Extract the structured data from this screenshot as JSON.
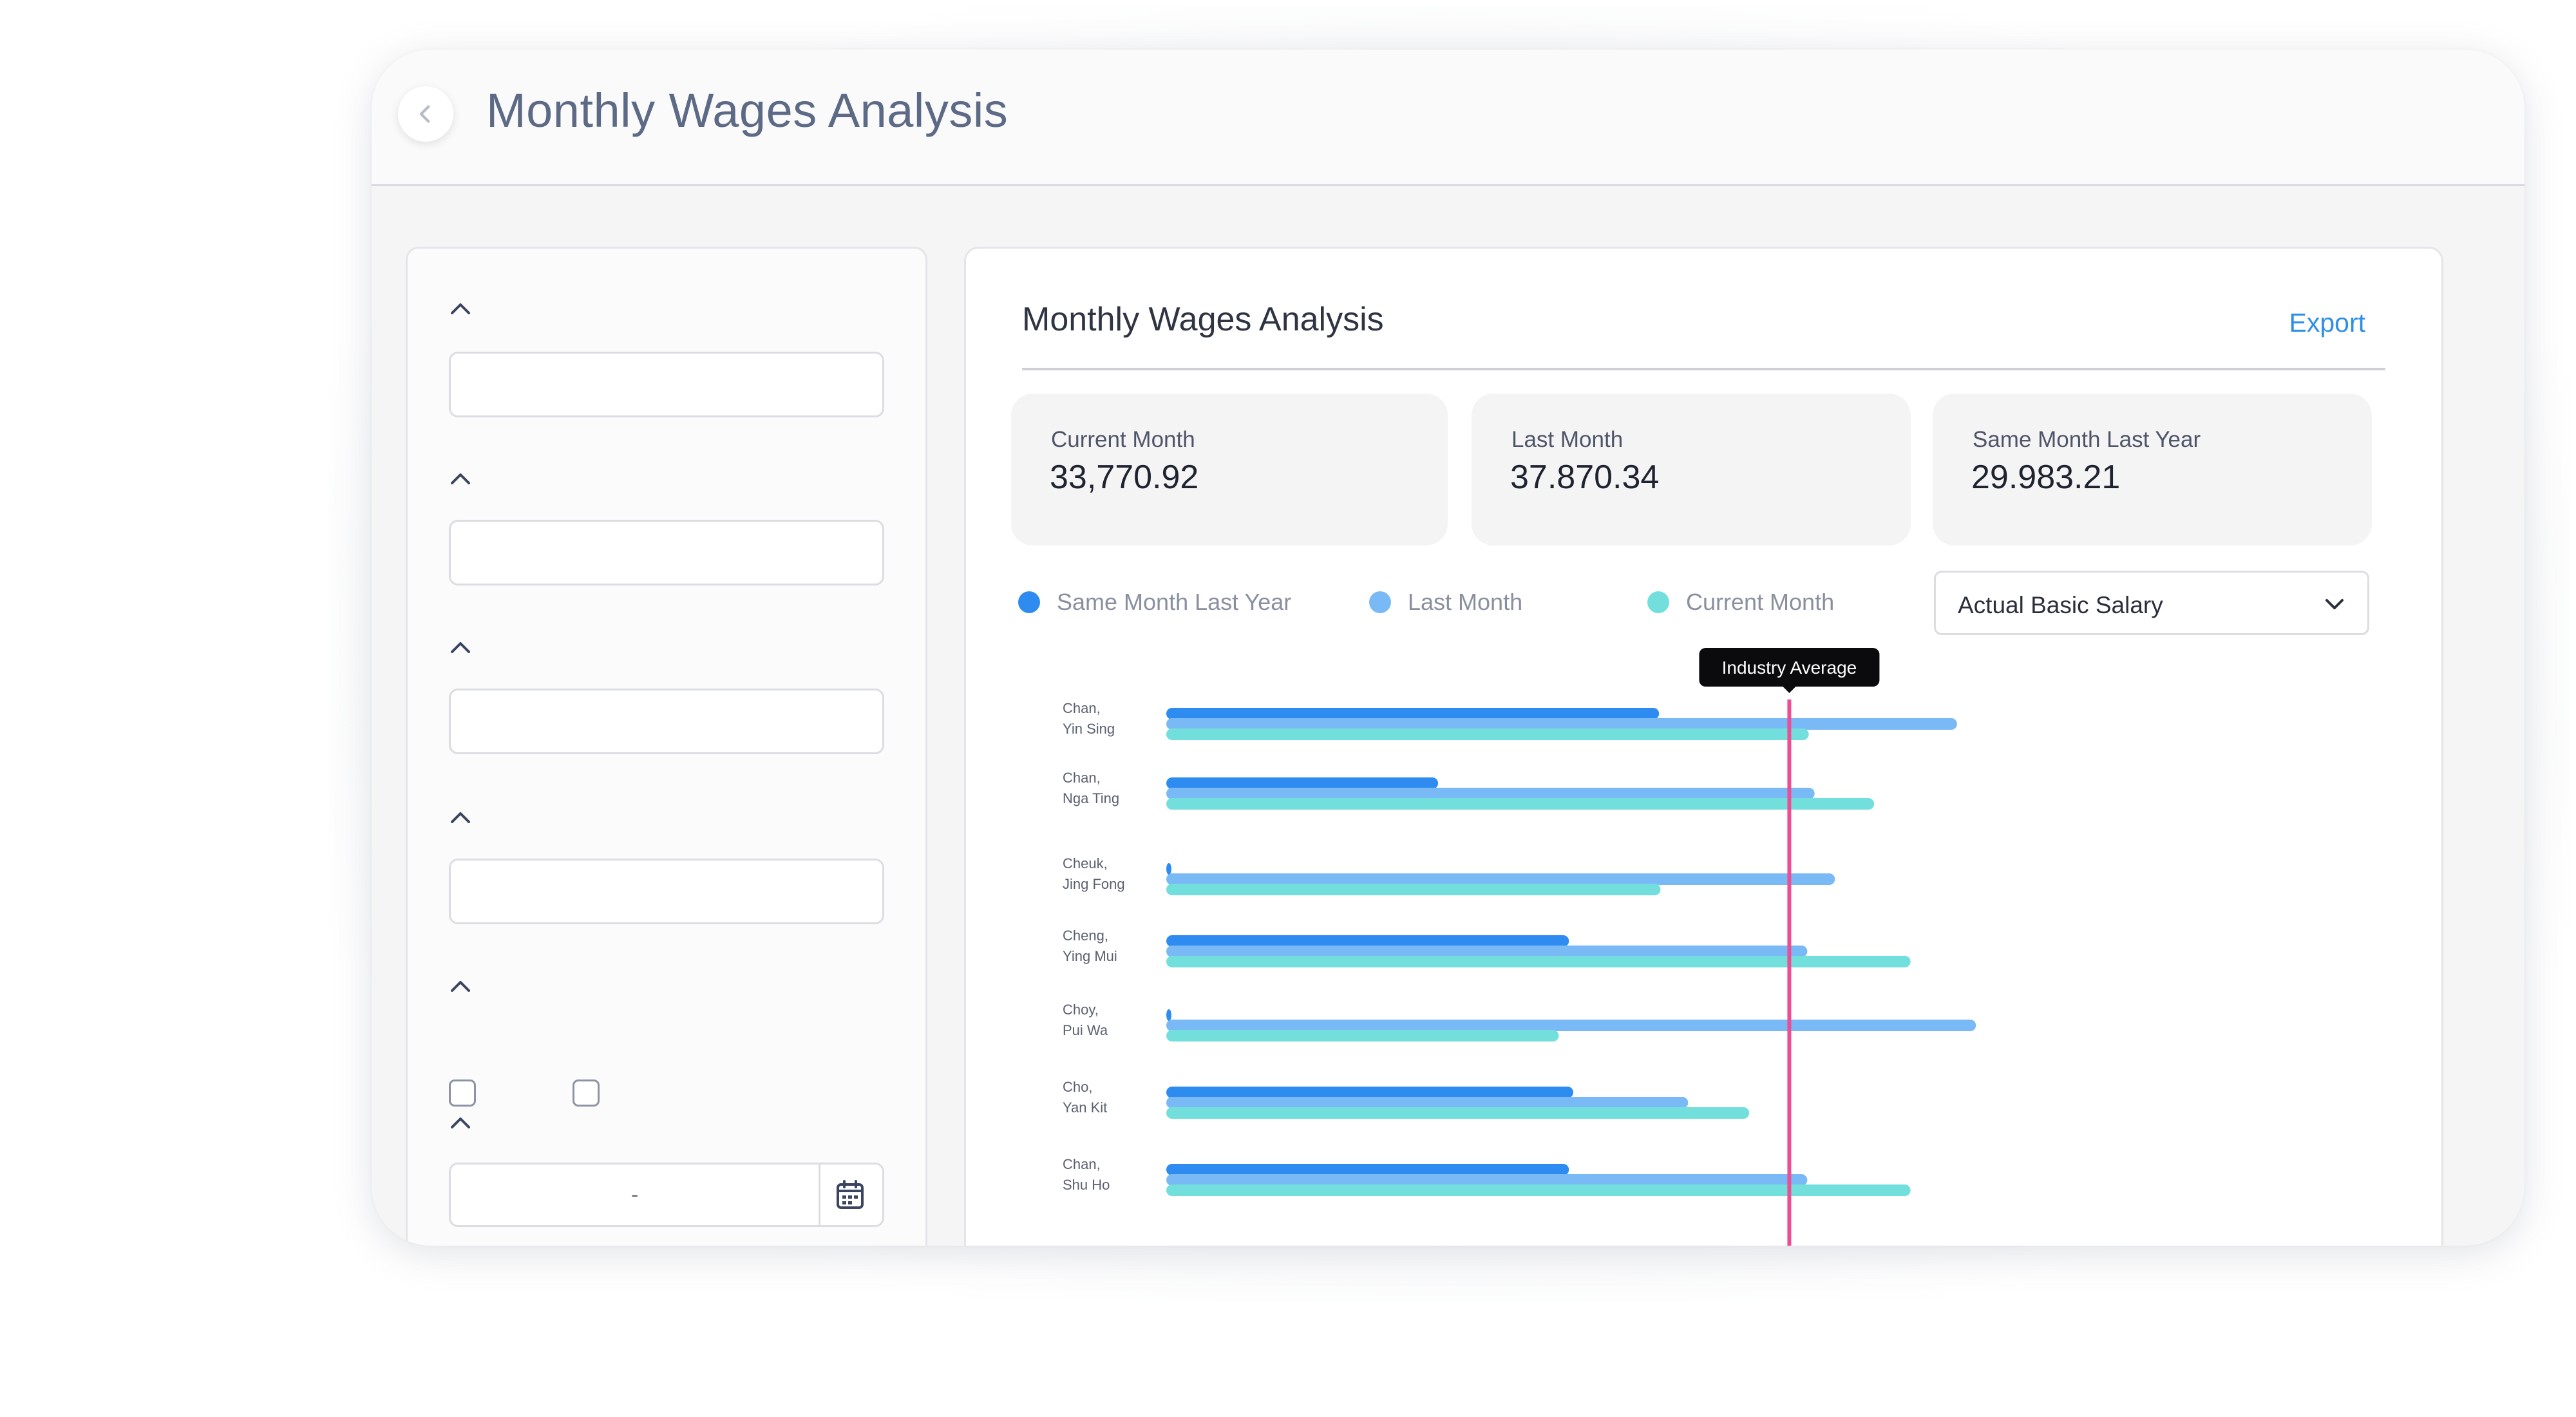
{
  "header": {
    "title": "Monthly Wages Analysis"
  },
  "filters": {
    "date_range_separator": "-"
  },
  "card": {
    "title": "Monthly Wages Analysis",
    "export_label": "Export"
  },
  "stats": [
    {
      "label": "Current Month",
      "value": "33,770.92"
    },
    {
      "label": "Last Month",
      "value": "37.870.34"
    },
    {
      "label": "Same Month Last Year",
      "value": "29.983.21"
    }
  ],
  "select": {
    "value": "Actual Basic Salary"
  },
  "colors": {
    "same_month_last_year": "#2e8cf0",
    "last_month": "#79b9f6",
    "current_month": "#73dfdc",
    "industry_average": "#ee4d93"
  },
  "chart_data": {
    "type": "bar",
    "orientation": "horizontal",
    "categories": [
      "Chan,\nYin Sing",
      "Chan,\nNga Ting",
      "Cheuk,\nJing Fong",
      "Cheng,\nYing Mui",
      "Choy,\nPui Wa",
      "Cho,\nYan Kit",
      "Chan,\nShu Ho"
    ],
    "series": [
      {
        "name": "Same Month Last Year",
        "values": [
          33900,
          18700,
          300,
          27700,
          300,
          28000,
          27700
        ]
      },
      {
        "name": "Last Month",
        "values": [
          54400,
          44600,
          46000,
          44100,
          55700,
          35900,
          44100
        ]
      },
      {
        "name": "Current Month",
        "values": [
          44200,
          48700,
          34000,
          51200,
          27000,
          40100,
          51200
        ]
      }
    ],
    "xlim": [
      0,
      70000
    ],
    "reference_line": {
      "label": "Industry Average",
      "value": 34000
    },
    "legend_position": "top-left"
  }
}
